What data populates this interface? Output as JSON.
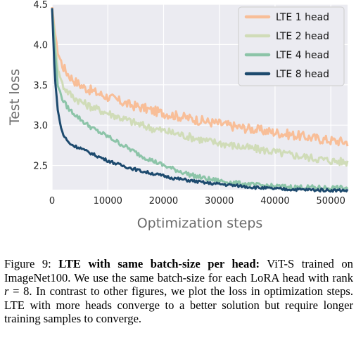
{
  "chart_data": {
    "type": "line",
    "xlabel": "Optimization steps",
    "ylabel": "Test loss",
    "xlim": [
      0,
      53000
    ],
    "ylim": [
      2.2,
      4.5
    ],
    "xticks": [
      "0",
      "10000",
      "20000",
      "30000",
      "40000",
      "50000"
    ],
    "yticks": [
      "2.5",
      "3.0",
      "3.5",
      "4.0",
      "4.5"
    ],
    "grid": true,
    "legend": "top-right",
    "series": [
      {
        "name": "LTE 1 head",
        "color": "#f8be98",
        "x": [
          0,
          1000,
          2000,
          3000,
          4000,
          5000,
          6000,
          8000,
          10000,
          12000,
          14000,
          16000,
          18000,
          20000,
          22000,
          25000,
          28000,
          30000,
          33000,
          36000,
          39000,
          42000,
          45000,
          48000,
          50000,
          53000
        ],
        "y": [
          4.45,
          3.9,
          3.72,
          3.62,
          3.55,
          3.5,
          3.46,
          3.4,
          3.35,
          3.3,
          3.25,
          3.22,
          3.18,
          3.15,
          3.12,
          3.08,
          3.04,
          3.02,
          2.98,
          2.95,
          2.92,
          2.89,
          2.86,
          2.83,
          2.81,
          2.79
        ]
      },
      {
        "name": "LTE 2 head",
        "color": "#d0dcb8",
        "x": [
          0,
          1000,
          2000,
          3000,
          4000,
          5000,
          6000,
          8000,
          10000,
          12000,
          14000,
          16000,
          18000,
          20000,
          22000,
          25000,
          28000,
          30000,
          33000,
          36000,
          39000,
          42000,
          45000,
          48000,
          50000,
          53000
        ],
        "y": [
          4.45,
          3.7,
          3.48,
          3.4,
          3.34,
          3.3,
          3.26,
          3.2,
          3.15,
          3.1,
          3.05,
          3.0,
          2.96,
          2.93,
          2.9,
          2.85,
          2.8,
          2.78,
          2.74,
          2.71,
          2.68,
          2.64,
          2.61,
          2.58,
          2.56,
          2.54
        ]
      },
      {
        "name": "LTE 4 head",
        "color": "#8cc4a8",
        "x": [
          0,
          1000,
          2000,
          3000,
          4000,
          5000,
          6000,
          8000,
          10000,
          12000,
          14000,
          16000,
          18000,
          20000,
          22000,
          25000,
          28000,
          30000,
          33000,
          36000,
          39000,
          42000,
          45000,
          48000,
          50000,
          53000
        ],
        "y": [
          4.45,
          3.5,
          3.3,
          3.2,
          3.14,
          3.08,
          3.02,
          2.93,
          2.86,
          2.78,
          2.7,
          2.62,
          2.56,
          2.5,
          2.45,
          2.38,
          2.33,
          2.31,
          2.28,
          2.26,
          2.245,
          2.235,
          2.23,
          2.225,
          2.222,
          2.22
        ]
      },
      {
        "name": "LTE 8 head",
        "color": "#1d4a6e",
        "x": [
          0,
          500,
          1000,
          1500,
          2000,
          3000,
          4000,
          5000,
          6000,
          8000,
          10000,
          12000,
          14000,
          16000,
          18000,
          20000,
          22000,
          25000,
          28000,
          30000,
          33000,
          36000,
          39000,
          42000,
          45000,
          48000,
          50000,
          53000
        ],
        "y": [
          4.45,
          3.6,
          3.2,
          3.0,
          2.88,
          2.78,
          2.74,
          2.72,
          2.68,
          2.62,
          2.56,
          2.51,
          2.47,
          2.43,
          2.4,
          2.37,
          2.34,
          2.31,
          2.28,
          2.27,
          2.25,
          2.23,
          2.215,
          2.205,
          2.2,
          2.195,
          2.193,
          2.19
        ]
      }
    ]
  },
  "caption": {
    "label": "Figure 9:",
    "bold": "LTE with same batch-size per head:",
    "part1": " ViT-S trained on ImageNet100.  We use the same batch-size for each LoRA head with rank ",
    "var": "r",
    "part2": " = 8. In contrast to other figures, we plot the loss in optimization steps. LTE with more heads converge to a better solution but require longer training samples to converge."
  }
}
